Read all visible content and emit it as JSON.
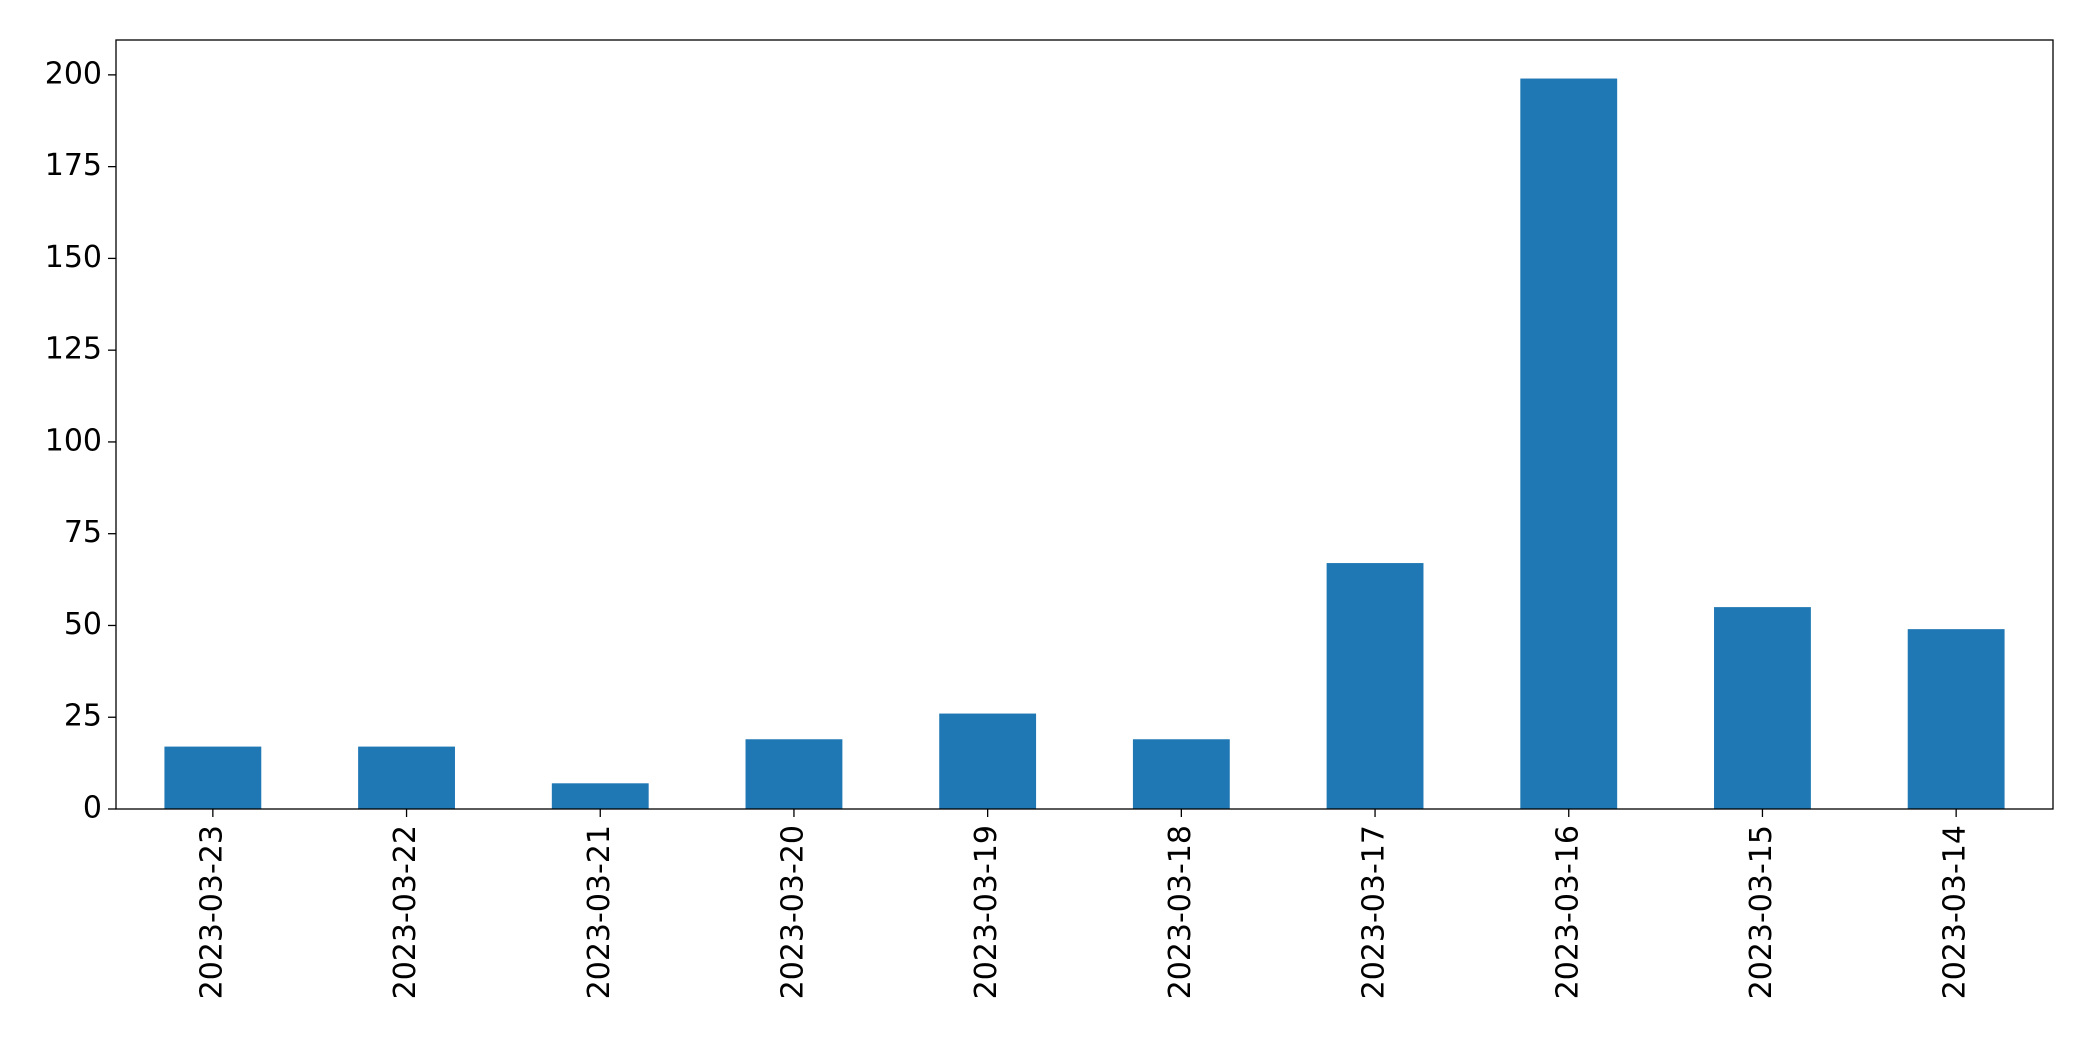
{
  "chart_data": {
    "type": "bar",
    "categories": [
      "2023-03-23",
      "2023-03-22",
      "2023-03-21",
      "2023-03-20",
      "2023-03-19",
      "2023-03-18",
      "2023-03-17",
      "2023-03-16",
      "2023-03-15",
      "2023-03-14"
    ],
    "values": [
      17,
      17,
      7,
      19,
      26,
      19,
      67,
      199,
      55,
      49
    ],
    "color": "#1f77b4",
    "ylim": [
      0,
      209.5
    ],
    "yticks": [
      0,
      25,
      50,
      75,
      100,
      125,
      150,
      175,
      200
    ],
    "grid": false
  }
}
